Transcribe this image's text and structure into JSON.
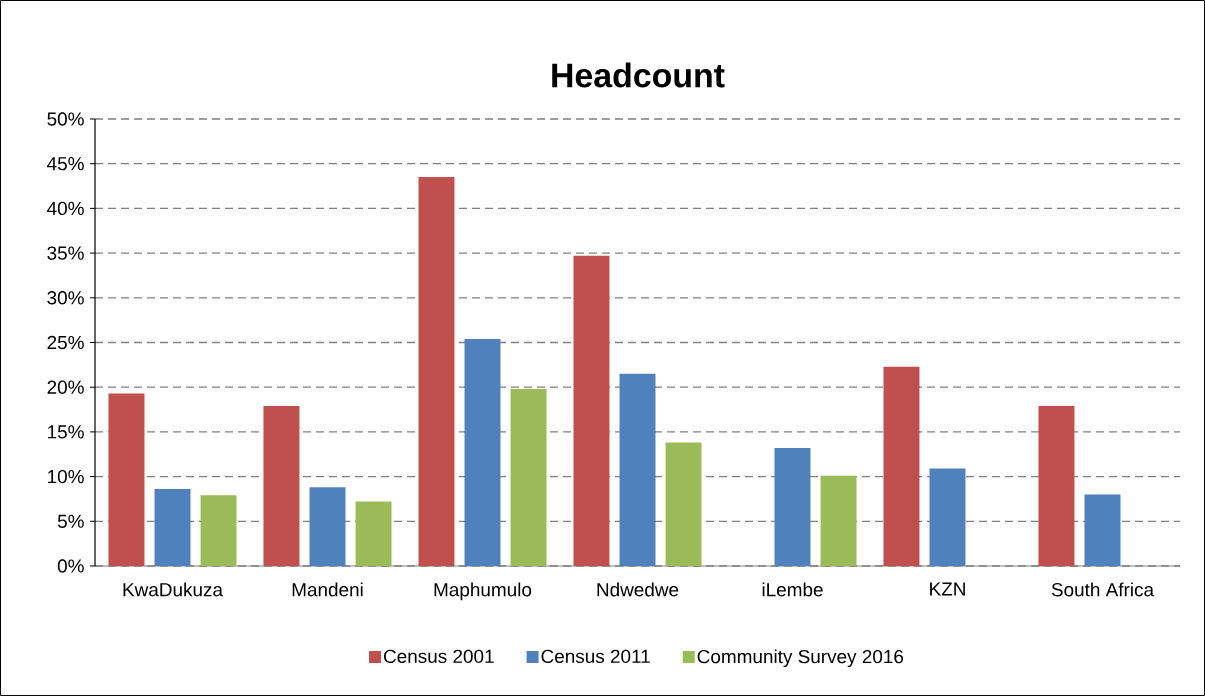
{
  "chart_data": {
    "type": "bar",
    "title": "Headcount",
    "categories": [
      "KwaDukuza",
      "Mandeni",
      "Maphumulo",
      "Ndwedwe",
      "iLembe",
      "KZN",
      "South Africa"
    ],
    "series": [
      {
        "name": "Census 2001",
        "color": "#c0504d",
        "values": [
          19.3,
          17.9,
          43.5,
          34.7,
          null,
          22.3,
          17.9
        ]
      },
      {
        "name": "Census 2011",
        "color": "#4f81bd",
        "values": [
          8.6,
          8.8,
          25.4,
          21.5,
          13.2,
          10.9,
          8.0
        ]
      },
      {
        "name": "Community Survey 2016",
        "color": "#9bbb59",
        "values": [
          7.9,
          7.2,
          19.8,
          13.8,
          10.1,
          null,
          null
        ]
      }
    ],
    "ylim": [
      0,
      50
    ],
    "yticks": [
      {
        "value": 0,
        "label": "0%"
      },
      {
        "value": 5,
        "label": "5%"
      },
      {
        "value": 10,
        "label": "10%"
      },
      {
        "value": 15,
        "label": "15%"
      },
      {
        "value": 20,
        "label": "20%"
      },
      {
        "value": 25,
        "label": "25%"
      },
      {
        "value": 30,
        "label": "30%"
      },
      {
        "value": 35,
        "label": "35%"
      },
      {
        "value": 40,
        "label": "40%"
      },
      {
        "value": 45,
        "label": "45%"
      },
      {
        "value": 50,
        "label": "50%"
      }
    ],
    "grid": "y",
    "legend": "bottom"
  }
}
